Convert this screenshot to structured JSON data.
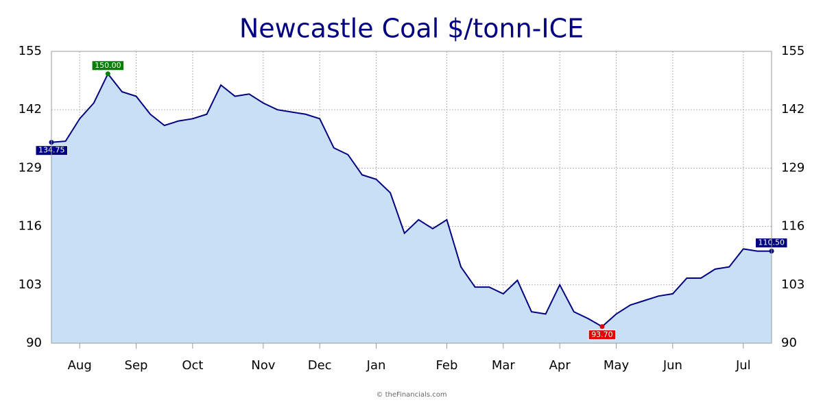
{
  "chart_data": {
    "type": "area",
    "title": "Newcastle Coal $/tonn-ICE",
    "footer": "© theFinancials.com",
    "categories": [
      null,
      null,
      "Aug",
      null,
      null,
      null,
      "Sep",
      null,
      null,
      null,
      "Oct",
      null,
      null,
      null,
      null,
      "Nov",
      null,
      null,
      null,
      "Dec",
      null,
      null,
      null,
      "Jan",
      null,
      null,
      null,
      null,
      "Feb",
      null,
      null,
      null,
      "Mar",
      null,
      null,
      null,
      "Apr",
      null,
      null,
      null,
      "May",
      null,
      null,
      null,
      "Jun",
      null,
      null,
      null,
      null,
      "Jul",
      null,
      null
    ],
    "values": [
      134.75,
      135,
      140,
      143.5,
      150,
      146,
      145,
      141,
      138.5,
      139.5,
      140,
      141,
      147.5,
      145,
      145.5,
      143.5,
      142,
      141.5,
      141,
      140,
      133.5,
      132,
      127.5,
      126.5,
      123.5,
      114.5,
      117.5,
      115.5,
      117.5,
      107,
      102.5,
      102.5,
      101,
      104,
      97,
      96.5,
      103,
      97,
      95.5,
      93.7,
      96.5,
      98.5,
      99.5,
      100.5,
      101,
      104.5,
      104.5,
      106.5,
      107,
      111,
      110.5,
      110.5
    ],
    "value_labels": [
      "134.75",
      null,
      null,
      null,
      "150.00",
      null,
      null,
      null,
      null,
      null,
      null,
      null,
      null,
      null,
      null,
      null,
      null,
      null,
      null,
      null,
      null,
      null,
      null,
      null,
      null,
      null,
      null,
      null,
      null,
      null,
      null,
      null,
      null,
      null,
      null,
      null,
      null,
      null,
      null,
      "93.70",
      null,
      null,
      null,
      null,
      null,
      null,
      null,
      null,
      null,
      null,
      null,
      "110.50"
    ],
    "color": "#000080",
    "fill_color": "#c8dff6",
    "high_color": "#008000",
    "low_color": "#e00000",
    "ylim": [
      90,
      155
    ],
    "yticks": [
      90,
      103,
      116,
      129,
      142,
      155
    ],
    "grid": true
  }
}
